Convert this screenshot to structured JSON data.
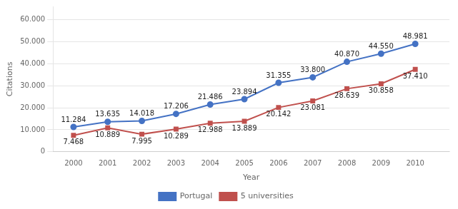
{
  "chart_data": {
    "type": "line",
    "x_label": "Year",
    "y_label": "Citations",
    "x": [
      2000,
      2001,
      2002,
      2003,
      2004,
      2005,
      2006,
      2007,
      2008,
      2009,
      2010
    ],
    "xlim": [
      1999.4,
      2011
    ],
    "xticks": [
      2000,
      2001,
      2002,
      2003,
      2004,
      2005,
      2006,
      2007,
      2008,
      2009,
      2010
    ],
    "ylim": [
      0,
      66000
    ],
    "yticks": [
      {
        "value": 0,
        "label": "0"
      },
      {
        "value": 10000,
        "label": "10.000"
      },
      {
        "value": 20000,
        "label": "20.000"
      },
      {
        "value": 30000,
        "label": "30.000"
      },
      {
        "value": 40000,
        "label": "40.000"
      },
      {
        "value": 50000,
        "label": "50.000"
      },
      {
        "value": 60000,
        "label": "60.000"
      }
    ],
    "grid": true,
    "legend": "bottom",
    "data_labels": true,
    "series": [
      {
        "name": "Portugal",
        "color": "#4472C4",
        "marker": "circle",
        "values": [
          11284,
          13635,
          14018,
          17206,
          21486,
          23894,
          31355,
          33800,
          40870,
          44550,
          48981
        ],
        "value_labels": [
          "11.284",
          "13.635",
          "14.018",
          "17.206",
          "21.486",
          "23.894",
          "31.355",
          "33.800",
          "40.870",
          "44.550",
          "48.981"
        ]
      },
      {
        "name": "5 universities",
        "color": "#C0504D",
        "marker": "square",
        "values": [
          7468,
          10889,
          7995,
          10289,
          12988,
          13889,
          20142,
          23081,
          28639,
          30858,
          37410
        ],
        "value_labels": [
          "7.468",
          "10.889",
          "7.995",
          "10.289",
          "12.988",
          "13.889",
          "20.142",
          "23.081",
          "28.639",
          "30.858",
          "37.410"
        ]
      }
    ]
  }
}
